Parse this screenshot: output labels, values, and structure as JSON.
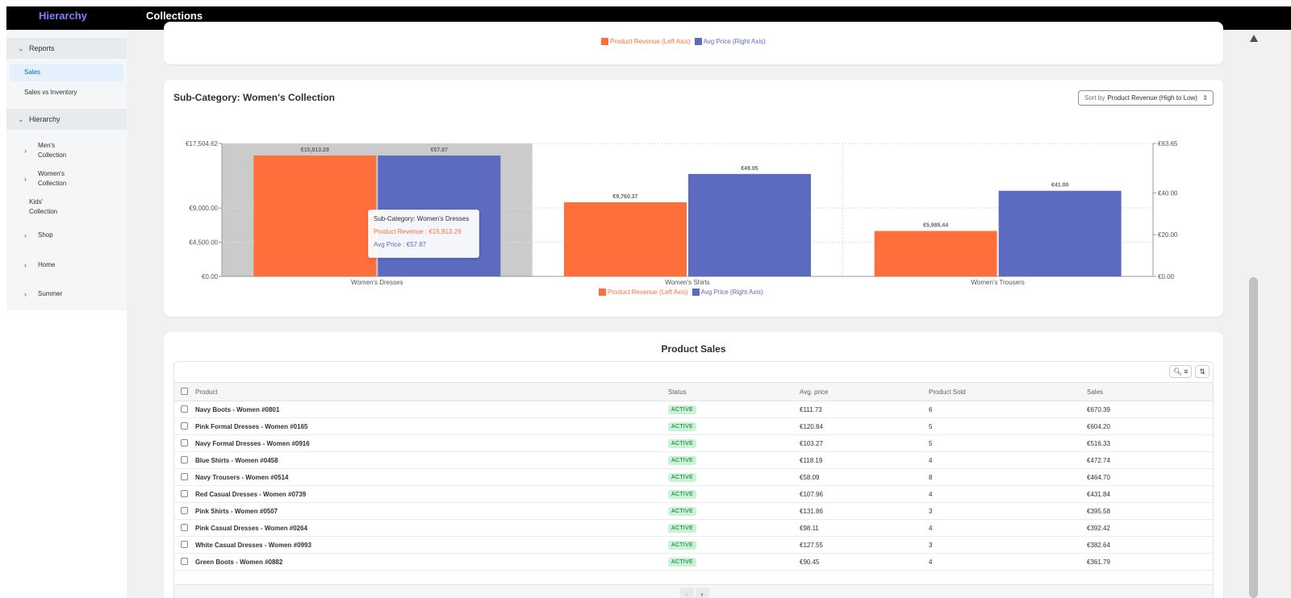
{
  "topbar": {
    "brand": "Hierarchy",
    "page_title": "Collections"
  },
  "sidebar": {
    "reports_section": "Reports",
    "reports_items": [
      {
        "label": "Sales",
        "active": true
      },
      {
        "label": "Sales vs Inventory",
        "active": false
      }
    ],
    "hierarchy_section": "Hierarchy",
    "hierarchy_items": [
      {
        "label": "Men's\nCollection",
        "line1": "Men's",
        "line2": "Collection",
        "expandable": true
      },
      {
        "label": "Women's\nCollection",
        "line1": "Women's",
        "line2": "Collection",
        "expandable": true
      },
      {
        "label": "Kids'\nCollection",
        "line1": "Kids'",
        "line2": "Collection",
        "expandable": false
      },
      {
        "label": "Shop",
        "line1": "Shop",
        "line2": "",
        "expandable": true
      },
      {
        "label": "Home",
        "line1": "Home",
        "line2": "",
        "expandable": true
      },
      {
        "label": "Summer",
        "line1": "Summer",
        "line2": "",
        "expandable": true
      }
    ]
  },
  "top_card_legend": {
    "revenue": "Product Revenue (Left Axis)",
    "avg_price": "Avg Price (Right Axis)"
  },
  "chart_card": {
    "title": "Sub-Category: Women's Collection",
    "sort_label": "Sort by",
    "sort_value": "Product Revenue (High to Low)",
    "tooltip": {
      "title": "Sub-Category: Women's Dresses",
      "revenue": "Product Revenue : €15,913.29",
      "avg_price": "Avg Price : €57.87"
    }
  },
  "chart_data": {
    "type": "bar",
    "title": "Sub-Category: Women's Collection",
    "categories": [
      "Women's Dresses",
      "Women's Shirts",
      "Women's Trousers"
    ],
    "series": [
      {
        "name": "Product Revenue (Left Axis)",
        "axis": "left",
        "color": "#ff6f3c",
        "values": [
          15913.29,
          9760.37,
          5985.44
        ],
        "labels": [
          "€15,913.29",
          "€9,760.37",
          "€5,985.44"
        ]
      },
      {
        "name": "Avg Price (Right Axis)",
        "axis": "right",
        "color": "#5c6bc0",
        "values": [
          57.87,
          49.05,
          41.0
        ],
        "labels": [
          "€57.87",
          "€49.05",
          "€41.00"
        ]
      }
    ],
    "left_axis": {
      "ylim": [
        0,
        17504.62
      ],
      "ticks": [
        0,
        4500,
        9000,
        17504.62
      ],
      "tick_labels": [
        "€0.00",
        "€4,500.00",
        "€9,000.00",
        "€17,504.62"
      ]
    },
    "right_axis": {
      "ylim": [
        0,
        63.65
      ],
      "ticks": [
        0,
        20,
        40,
        63.65
      ],
      "tick_labels": [
        "€0.00",
        "€20.00",
        "€40.00",
        "€63.65"
      ]
    },
    "highlighted_category": "Women's Dresses",
    "grid": true,
    "legend_position": "bottom-center"
  },
  "sales": {
    "title": "Product Sales",
    "columns": [
      "Product",
      "Status",
      "Avg. price",
      "Product Sold",
      "Sales"
    ],
    "rows": [
      [
        "Navy Boots - Women #0801",
        "ACTIVE",
        "€111.73",
        "6",
        "€670.39"
      ],
      [
        "Pink Formal Dresses - Women #0165",
        "ACTIVE",
        "€120.84",
        "5",
        "€604.20"
      ],
      [
        "Navy Formal Dresses - Women #0916",
        "ACTIVE",
        "€103.27",
        "5",
        "€516.33"
      ],
      [
        "Blue Shirts - Women #0458",
        "ACTIVE",
        "€118.19",
        "4",
        "€472.74"
      ],
      [
        "Navy Trousers - Women #0514",
        "ACTIVE",
        "€58.09",
        "8",
        "€464.70"
      ],
      [
        "Red Casual Dresses - Women #0739",
        "ACTIVE",
        "€107.96",
        "4",
        "€431.84"
      ],
      [
        "Pink Shirts - Women #0507",
        "ACTIVE",
        "€131.86",
        "3",
        "€395.58"
      ],
      [
        "Pink Casual Dresses - Women #0264",
        "ACTIVE",
        "€98.11",
        "4",
        "€392.42"
      ],
      [
        "White Casual Dresses - Women #0993",
        "ACTIVE",
        "€127.55",
        "3",
        "€382.64"
      ],
      [
        "Green Boots - Women #0882",
        "ACTIVE",
        "€90.45",
        "4",
        "€361.79"
      ]
    ],
    "tools": {
      "search_filter": "search-filter-icon",
      "sort": "sort-icon"
    },
    "pager": {
      "prev": "‹",
      "next": "›"
    }
  }
}
